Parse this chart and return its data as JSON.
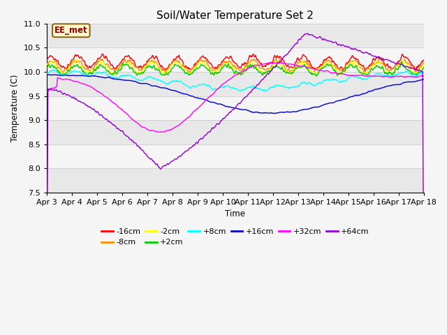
{
  "title": "Soil/Water Temperature Set 2",
  "xlabel": "Time",
  "ylabel": "Temperature (C)",
  "ylim": [
    7.5,
    11.0
  ],
  "annotation_text": "EE_met",
  "annotation_color": "#8B0000",
  "annotation_bg": "#FFFACD",
  "annotation_border": "#8B6914",
  "x_tick_labels": [
    "Apr 3",
    "Apr 4",
    "Apr 5",
    "Apr 6",
    "Apr 7",
    "Apr 8",
    "Apr 9",
    "Apr 10",
    "Apr 11",
    "Apr 12",
    "Apr 13",
    "Apr 14",
    "Apr 15",
    "Apr 16",
    "Apr 17",
    "Apr 18"
  ],
  "series": [
    {
      "label": "-16cm",
      "color": "#FF0000"
    },
    {
      "label": "-8cm",
      "color": "#FF8C00"
    },
    {
      "label": "-2cm",
      "color": "#FFFF00"
    },
    {
      "label": "+2cm",
      "color": "#00CC00"
    },
    {
      "label": "+8cm",
      "color": "#00FFFF"
    },
    {
      "label": "+16cm",
      "color": "#0000CC"
    },
    {
      "label": "+32cm",
      "color": "#FF00FF"
    },
    {
      "label": "+64cm",
      "color": "#9400D3"
    }
  ],
  "yticks": [
    7.5,
    8.0,
    8.5,
    9.0,
    9.5,
    10.0,
    10.5,
    11.0
  ],
  "band_colors": [
    "#e8e8e8",
    "#f5f5f5",
    "#e8e8e8",
    "#f5f5f5",
    "#e8e8e8",
    "#f5f5f5",
    "#e8e8e8"
  ]
}
